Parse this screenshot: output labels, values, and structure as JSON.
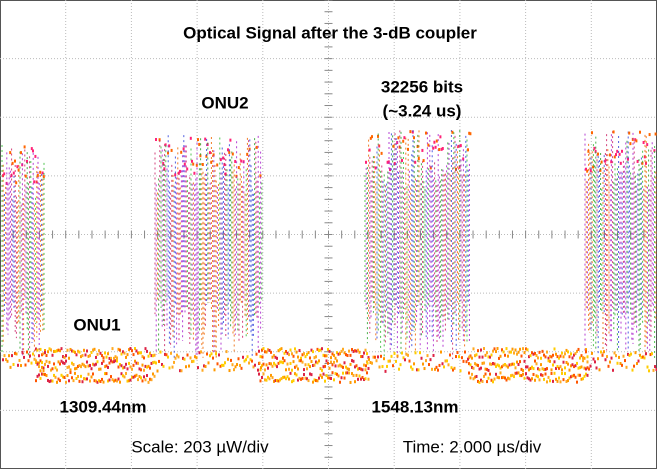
{
  "title": "Optical Signal after the 3-dB coupler",
  "annotations": {
    "burst_bits": "32256 bits",
    "burst_duration": "(~3.24 us)",
    "onu2": "ONU2",
    "onu1": "ONU1",
    "wavelength_1": "1309.44nm",
    "wavelength_2": "1548.13nm"
  },
  "footer": {
    "scale": "Scale: 203 µW/div",
    "time": "Time: 2.000 µs/div"
  }
}
